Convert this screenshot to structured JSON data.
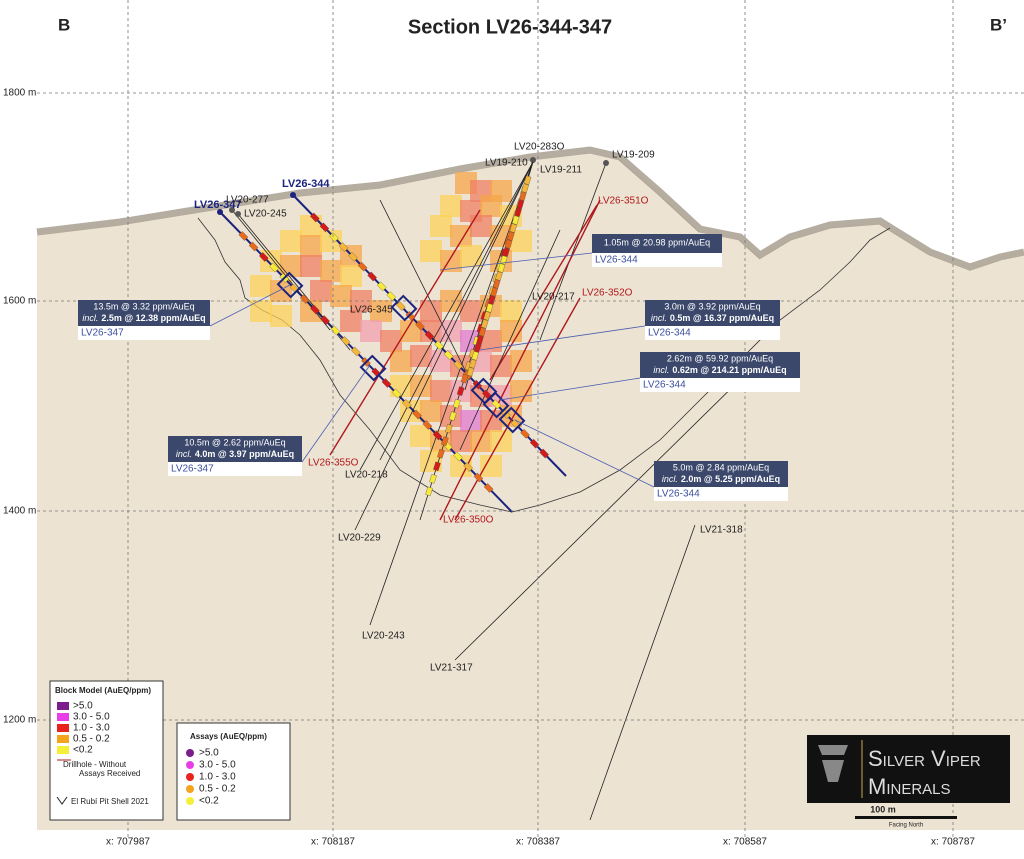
{
  "header": {
    "title": "Section LV26-344-347",
    "left": "B",
    "right": "B’"
  },
  "elevations": [
    "1800 m",
    "1600 m",
    "1400 m",
    "1200 m"
  ],
  "eastings": [
    "x: 707987",
    "x: 708187",
    "x: 708387",
    "x: 708587",
    "x: 708787"
  ],
  "drillholes": [
    "LV26-347",
    "LV20-277",
    "LV20-245",
    "LV26-344",
    "LV20-283O",
    "LV19-210",
    "LV19-211",
    "LV19-209",
    "LV26-351O",
    "LV26-345",
    "LV20-217",
    "LV26-352O",
    "LV26-355O",
    "LV20-218",
    "LV20-229",
    "LV26-350O",
    "LV20-243",
    "LV21-317",
    "LV21-318"
  ],
  "callouts": [
    {
      "summary": "1.05m @ 20.98 ppm/AuEq",
      "hole": "LV26-344"
    },
    {
      "summary": "13.5m @ 3.32 ppm/AuEq",
      "incl_label": "incl.",
      "incl": "2.5m @ 12.38 ppm/AuEq",
      "hole": "LV26-347"
    },
    {
      "summary": "3.0m @ 3.92 ppm/AuEq",
      "incl_label": "incl.",
      "incl": "0.5m @ 16.37 ppm/AuEq",
      "hole": "LV26-344"
    },
    {
      "summary": "2.62m @ 59.92 ppm/AuEq",
      "incl_label": "incl.",
      "incl": "0.62m @ 214.21 ppm/AuEq",
      "hole": "LV26-344"
    },
    {
      "summary": "10.5m @ 2.62 ppm/AuEq",
      "incl_label": "incl.",
      "incl": "4.0m @ 3.97 ppm/AuEq",
      "hole": "LV26-347"
    },
    {
      "summary": "5.0m @ 2.84 ppm/AuEq",
      "incl_label": "incl.",
      "incl": "2.0m @ 5.25 ppm/AuEq",
      "hole": "LV26-344"
    }
  ],
  "block_legend": {
    "title": "Block Model (AuEQ/ppm)",
    "items": [
      ">5.0",
      "3.0 - 5.0",
      "1.0 - 3.0",
      "0.5 - 0.2",
      "<0.2"
    ],
    "drillhole_note": [
      "Drillhole - Without",
      "Assays Received"
    ],
    "pit_note": "El Rubí Pit Shell 2021"
  },
  "assay_legend": {
    "title": "Assays (AuEQ/ppm)",
    "items": [
      ">5.0",
      "3.0 - 5.0",
      "1.0 - 3.0",
      "0.5 - 0.2",
      "<0.2"
    ]
  },
  "logo": {
    "line1": "Silver Viper",
    "line2": "Minerals"
  },
  "scale": {
    "label": "100 m",
    "facing": "Facing North"
  }
}
